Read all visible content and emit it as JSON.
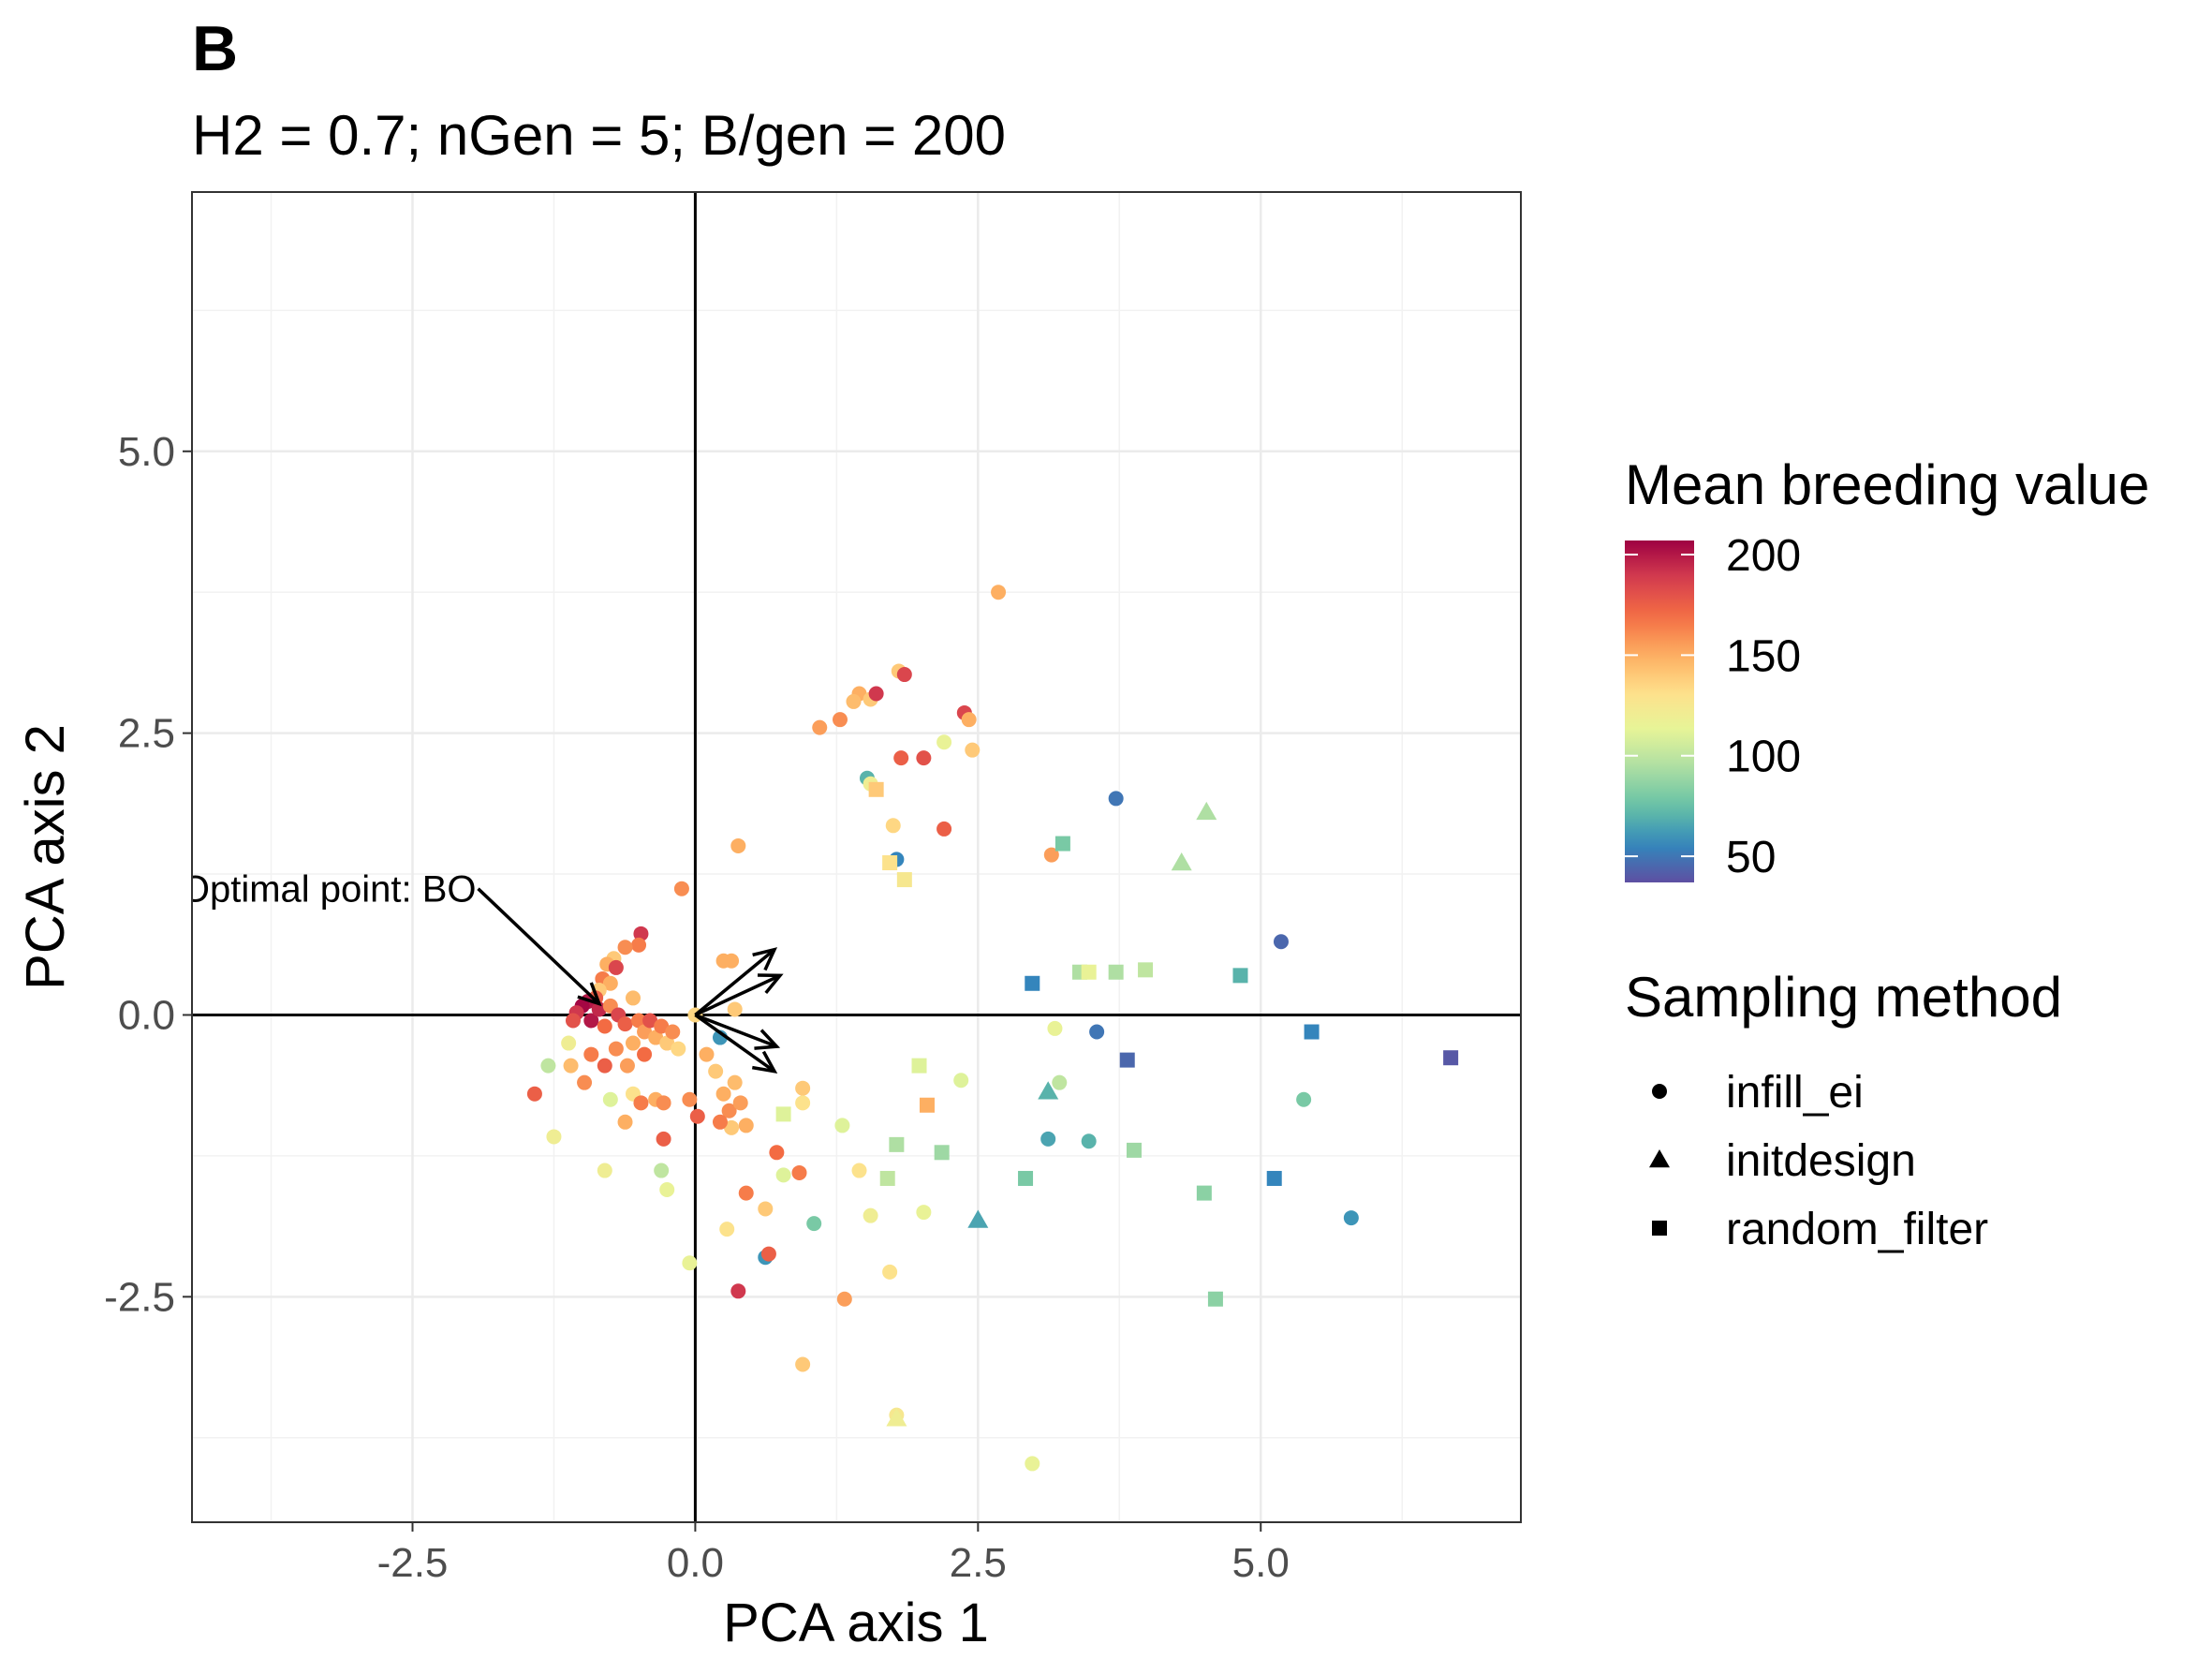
{
  "panel_tag": "B",
  "chart_data": {
    "type": "scatter",
    "title": "",
    "subtitle": "H2 = 0.7; nGen = 5; B/gen = 200",
    "xlabel": "PCA axis 1",
    "ylabel": "PCA axis 2",
    "xlim": [
      -4.45,
      7.3
    ],
    "ylim": [
      -4.5,
      7.3
    ],
    "xticks": [
      -2.5,
      0.0,
      2.5,
      5.0
    ],
    "yticks": [
      -2.5,
      0.0,
      2.5,
      5.0
    ],
    "xtick_labels": [
      "-2.5",
      "0.0",
      "2.5",
      "5.0"
    ],
    "ytick_labels": [
      "-2.5",
      "0.0",
      "2.5",
      "5.0"
    ],
    "grid": true,
    "color_scale": {
      "title": "Mean breeding value",
      "min": 37,
      "max": 207,
      "ticks": [
        200,
        150,
        100,
        50
      ],
      "tick_labels": [
        "200",
        "150",
        "100",
        "50"
      ],
      "palette": [
        "#5e4fa2",
        "#3288bd",
        "#66c2a5",
        "#abdda4",
        "#e6f598",
        "#fee08b",
        "#fdae61",
        "#f46d43",
        "#d53e4f",
        "#9e0142"
      ]
    },
    "shape_legend": {
      "title": "Sampling method",
      "items": [
        {
          "label": "infill_ei",
          "shape": "circle"
        },
        {
          "label": "initdesign",
          "shape": "triangle"
        },
        {
          "label": "random_filter",
          "shape": "square"
        }
      ]
    },
    "annotation": {
      "text": "Optimal point: BO",
      "x": -1.92,
      "y": 1.12,
      "arrow_to": [
        -0.85,
        0.1
      ]
    },
    "loading_arrows": [
      {
        "x": 0.7,
        "y": 0.58
      },
      {
        "x": 0.75,
        "y": 0.35
      },
      {
        "x": 0.7,
        "y": -0.5
      },
      {
        "x": 0.72,
        "y": -0.28
      }
    ],
    "points": [
      {
        "method": "infill_ei",
        "x": 2.68,
        "y": 3.75,
        "value": 150
      },
      {
        "method": "infill_ei",
        "x": 1.8,
        "y": 3.05,
        "value": 140
      },
      {
        "method": "infill_ei",
        "x": 1.85,
        "y": 3.02,
        "value": 185
      },
      {
        "method": "infill_ei",
        "x": 1.45,
        "y": 2.85,
        "value": 150
      },
      {
        "method": "infill_ei",
        "x": 1.55,
        "y": 2.8,
        "value": 140
      },
      {
        "method": "infill_ei",
        "x": 1.6,
        "y": 2.85,
        "value": 190
      },
      {
        "method": "infill_ei",
        "x": 1.4,
        "y": 2.78,
        "value": 145
      },
      {
        "method": "infill_ei",
        "x": 1.28,
        "y": 2.62,
        "value": 160
      },
      {
        "method": "infill_ei",
        "x": 1.1,
        "y": 2.55,
        "value": 155
      },
      {
        "method": "infill_ei",
        "x": 2.38,
        "y": 2.68,
        "value": 185
      },
      {
        "method": "infill_ei",
        "x": 2.42,
        "y": 2.62,
        "value": 150
      },
      {
        "method": "infill_ei",
        "x": 2.45,
        "y": 2.35,
        "value": 140
      },
      {
        "method": "infill_ei",
        "x": 2.2,
        "y": 2.42,
        "value": 115
      },
      {
        "method": "infill_ei",
        "x": 1.82,
        "y": 2.28,
        "value": 175
      },
      {
        "method": "infill_ei",
        "x": 2.02,
        "y": 2.28,
        "value": 180
      },
      {
        "method": "infill_ei",
        "x": 1.52,
        "y": 2.1,
        "value": 70
      },
      {
        "method": "infill_ei",
        "x": 1.55,
        "y": 2.05,
        "value": 120
      },
      {
        "method": "infill_ei",
        "x": 1.75,
        "y": 1.68,
        "value": 135
      },
      {
        "method": "infill_ei",
        "x": 2.2,
        "y": 1.65,
        "value": 175
      },
      {
        "method": "infill_ei",
        "x": 1.78,
        "y": 1.38,
        "value": 55
      },
      {
        "method": "infill_ei",
        "x": 3.15,
        "y": 1.42,
        "value": 155
      },
      {
        "method": "infill_ei",
        "x": 3.72,
        "y": 1.92,
        "value": 50
      },
      {
        "method": "infill_ei",
        "x": 0.38,
        "y": 1.5,
        "value": 150
      },
      {
        "method": "infill_ei",
        "x": -0.12,
        "y": 1.12,
        "value": 160
      },
      {
        "method": "infill_ei",
        "x": -0.48,
        "y": 0.72,
        "value": 190
      },
      {
        "method": "infill_ei",
        "x": -0.5,
        "y": 0.62,
        "value": 165
      },
      {
        "method": "infill_ei",
        "x": -0.62,
        "y": 0.6,
        "value": 160
      },
      {
        "method": "infill_ei",
        "x": -0.72,
        "y": 0.5,
        "value": 140
      },
      {
        "method": "infill_ei",
        "x": -0.78,
        "y": 0.45,
        "value": 150
      },
      {
        "method": "infill_ei",
        "x": -0.7,
        "y": 0.42,
        "value": 185
      },
      {
        "method": "infill_ei",
        "x": -0.82,
        "y": 0.32,
        "value": 165
      },
      {
        "method": "infill_ei",
        "x": -0.75,
        "y": 0.28,
        "value": 150
      },
      {
        "method": "infill_ei",
        "x": -0.85,
        "y": 0.22,
        "value": 140
      },
      {
        "method": "infill_ei",
        "x": -0.88,
        "y": 0.15,
        "value": 175
      },
      {
        "method": "infill_ei",
        "x": -0.95,
        "y": 0.12,
        "value": 200
      },
      {
        "method": "infill_ei",
        "x": -1.0,
        "y": 0.08,
        "value": 205
      },
      {
        "method": "infill_ei",
        "x": -1.05,
        "y": 0.02,
        "value": 190
      },
      {
        "method": "infill_ei",
        "x": -1.08,
        "y": -0.05,
        "value": 180
      },
      {
        "method": "infill_ei",
        "x": -0.92,
        "y": -0.05,
        "value": 200
      },
      {
        "method": "infill_ei",
        "x": -0.85,
        "y": 0.05,
        "value": 195
      },
      {
        "method": "infill_ei",
        "x": -0.8,
        "y": -0.1,
        "value": 170
      },
      {
        "method": "infill_ei",
        "x": -0.75,
        "y": 0.08,
        "value": 160
      },
      {
        "method": "infill_ei",
        "x": -0.68,
        "y": 0.0,
        "value": 185
      },
      {
        "method": "infill_ei",
        "x": -0.62,
        "y": -0.08,
        "value": 175
      },
      {
        "method": "infill_ei",
        "x": -0.55,
        "y": 0.15,
        "value": 145
      },
      {
        "method": "infill_ei",
        "x": -0.5,
        "y": -0.05,
        "value": 165
      },
      {
        "method": "infill_ei",
        "x": -0.45,
        "y": -0.15,
        "value": 155
      },
      {
        "method": "infill_ei",
        "x": -0.4,
        "y": -0.05,
        "value": 180
      },
      {
        "method": "infill_ei",
        "x": -0.35,
        "y": -0.2,
        "value": 150
      },
      {
        "method": "infill_ei",
        "x": -0.3,
        "y": -0.1,
        "value": 165
      },
      {
        "method": "infill_ei",
        "x": -0.25,
        "y": -0.25,
        "value": 140
      },
      {
        "method": "infill_ei",
        "x": -0.2,
        "y": -0.15,
        "value": 160
      },
      {
        "method": "infill_ei",
        "x": -0.15,
        "y": -0.3,
        "value": 135
      },
      {
        "method": "infill_ei",
        "x": -0.45,
        "y": -0.35,
        "value": 170
      },
      {
        "method": "infill_ei",
        "x": -0.55,
        "y": -0.25,
        "value": 150
      },
      {
        "method": "infill_ei",
        "x": -0.6,
        "y": -0.45,
        "value": 155
      },
      {
        "method": "infill_ei",
        "x": -0.7,
        "y": -0.3,
        "value": 160
      },
      {
        "method": "infill_ei",
        "x": -0.8,
        "y": -0.45,
        "value": 175
      },
      {
        "method": "infill_ei",
        "x": -0.92,
        "y": -0.35,
        "value": 165
      },
      {
        "method": "infill_ei",
        "x": -0.98,
        "y": -0.6,
        "value": 160
      },
      {
        "method": "infill_ei",
        "x": -1.1,
        "y": -0.45,
        "value": 145
      },
      {
        "method": "infill_ei",
        "x": -1.12,
        "y": -0.25,
        "value": 120
      },
      {
        "method": "infill_ei",
        "x": -1.3,
        "y": -0.45,
        "value": 100
      },
      {
        "method": "infill_ei",
        "x": -1.42,
        "y": -0.7,
        "value": 175
      },
      {
        "method": "infill_ei",
        "x": -1.25,
        "y": -1.08,
        "value": 120
      },
      {
        "method": "infill_ei",
        "x": -0.75,
        "y": -0.75,
        "value": 110
      },
      {
        "method": "infill_ei",
        "x": -0.62,
        "y": -0.95,
        "value": 150
      },
      {
        "method": "infill_ei",
        "x": -0.55,
        "y": -0.7,
        "value": 130
      },
      {
        "method": "infill_ei",
        "x": -0.48,
        "y": -0.78,
        "value": 165
      },
      {
        "method": "infill_ei",
        "x": -0.35,
        "y": -0.75,
        "value": 150
      },
      {
        "method": "infill_ei",
        "x": -0.28,
        "y": -0.78,
        "value": 160
      },
      {
        "method": "infill_ei",
        "x": -0.28,
        "y": -1.1,
        "value": 175
      },
      {
        "method": "infill_ei",
        "x": -0.8,
        "y": -1.38,
        "value": 120
      },
      {
        "method": "infill_ei",
        "x": -0.3,
        "y": -1.38,
        "value": 100
      },
      {
        "method": "infill_ei",
        "x": -0.25,
        "y": -1.55,
        "value": 115
      },
      {
        "method": "infill_ei",
        "x": -0.05,
        "y": -0.75,
        "value": 160
      },
      {
        "method": "infill_ei",
        "x": 0.02,
        "y": -0.9,
        "value": 175
      },
      {
        "method": "infill_ei",
        "x": 0.18,
        "y": -0.5,
        "value": 140
      },
      {
        "method": "infill_ei",
        "x": 0.25,
        "y": -0.7,
        "value": 150
      },
      {
        "method": "infill_ei",
        "x": 0.3,
        "y": -0.85,
        "value": 160
      },
      {
        "method": "infill_ei",
        "x": 0.35,
        "y": -0.6,
        "value": 145
      },
      {
        "method": "infill_ei",
        "x": 0.4,
        "y": -0.78,
        "value": 155
      },
      {
        "method": "infill_ei",
        "x": 0.45,
        "y": -0.98,
        "value": 150
      },
      {
        "method": "infill_ei",
        "x": 0.32,
        "y": -1.0,
        "value": 140
      },
      {
        "method": "infill_ei",
        "x": 0.22,
        "y": -0.95,
        "value": 165
      },
      {
        "method": "infill_ei",
        "x": 0.22,
        "y": -0.2,
        "value": 60
      },
      {
        "method": "infill_ei",
        "x": 0.0,
        "y": 0.0,
        "value": 135
      },
      {
        "method": "infill_ei",
        "x": 0.1,
        "y": -0.35,
        "value": 150
      },
      {
        "method": "infill_ei",
        "x": 0.35,
        "y": 0.05,
        "value": 140
      },
      {
        "method": "infill_ei",
        "x": 0.25,
        "y": 0.48,
        "value": 150
      },
      {
        "method": "infill_ei",
        "x": 0.32,
        "y": 0.48,
        "value": 150
      },
      {
        "method": "infill_ei",
        "x": 0.95,
        "y": -0.65,
        "value": 140
      },
      {
        "method": "infill_ei",
        "x": 0.95,
        "y": -0.78,
        "value": 130
      },
      {
        "method": "infill_ei",
        "x": 0.72,
        "y": -1.22,
        "value": 170
      },
      {
        "method": "infill_ei",
        "x": 0.78,
        "y": -1.42,
        "value": 110
      },
      {
        "method": "infill_ei",
        "x": 0.92,
        "y": -1.4,
        "value": 165
      },
      {
        "method": "infill_ei",
        "x": 0.45,
        "y": -1.58,
        "value": 165
      },
      {
        "method": "infill_ei",
        "x": 0.62,
        "y": -1.72,
        "value": 140
      },
      {
        "method": "infill_ei",
        "x": 0.28,
        "y": -1.9,
        "value": 130
      },
      {
        "method": "infill_ei",
        "x": 0.62,
        "y": -2.15,
        "value": 60
      },
      {
        "method": "infill_ei",
        "x": 0.65,
        "y": -2.12,
        "value": 175
      },
      {
        "method": "infill_ei",
        "x": 0.38,
        "y": -2.45,
        "value": 190
      },
      {
        "method": "infill_ei",
        "x": -0.05,
        "y": -2.2,
        "value": 115
      },
      {
        "method": "infill_ei",
        "x": 1.32,
        "y": -2.52,
        "value": 155
      },
      {
        "method": "infill_ei",
        "x": 0.95,
        "y": -3.1,
        "value": 140
      },
      {
        "method": "infill_ei",
        "x": 1.05,
        "y": -1.85,
        "value": 80
      },
      {
        "method": "infill_ei",
        "x": 1.3,
        "y": -0.98,
        "value": 110
      },
      {
        "method": "infill_ei",
        "x": 1.45,
        "y": -1.38,
        "value": 130
      },
      {
        "method": "infill_ei",
        "x": 1.55,
        "y": -1.78,
        "value": 120
      },
      {
        "method": "infill_ei",
        "x": 1.72,
        "y": -2.28,
        "value": 130
      },
      {
        "method": "infill_ei",
        "x": 1.78,
        "y": -3.55,
        "value": 125
      },
      {
        "method": "infill_ei",
        "x": 2.02,
        "y": -1.75,
        "value": 115
      },
      {
        "method": "infill_ei",
        "x": 2.35,
        "y": -0.58,
        "value": 110
      },
      {
        "method": "infill_ei",
        "x": 2.98,
        "y": -3.98,
        "value": 115
      },
      {
        "method": "infill_ei",
        "x": 3.18,
        "y": -0.12,
        "value": 115
      },
      {
        "method": "infill_ei",
        "x": 3.22,
        "y": -0.6,
        "value": 100
      },
      {
        "method": "infill_ei",
        "x": 3.12,
        "y": -1.1,
        "value": 65
      },
      {
        "method": "infill_ei",
        "x": 3.48,
        "y": -1.12,
        "value": 70
      },
      {
        "method": "infill_ei",
        "x": 3.55,
        "y": -0.15,
        "value": 50
      },
      {
        "method": "infill_ei",
        "x": 5.18,
        "y": 0.65,
        "value": 45
      },
      {
        "method": "infill_ei",
        "x": 5.38,
        "y": -0.75,
        "value": 80
      },
      {
        "method": "infill_ei",
        "x": 5.8,
        "y": -1.8,
        "value": 60
      },
      {
        "method": "initdesign",
        "x": 4.52,
        "y": 1.8,
        "value": 95
      },
      {
        "method": "initdesign",
        "x": 4.3,
        "y": 1.35,
        "value": 95
      },
      {
        "method": "initdesign",
        "x": 3.12,
        "y": -0.68,
        "value": 70
      },
      {
        "method": "initdesign",
        "x": 2.5,
        "y": -1.82,
        "value": 65
      },
      {
        "method": "initdesign",
        "x": 1.78,
        "y": -3.58,
        "value": 120
      },
      {
        "method": "random_filter",
        "x": 1.6,
        "y": 2.0,
        "value": 140
      },
      {
        "method": "random_filter",
        "x": 1.72,
        "y": 1.35,
        "value": 130
      },
      {
        "method": "random_filter",
        "x": 1.85,
        "y": 1.2,
        "value": 125
      },
      {
        "method": "random_filter",
        "x": 3.25,
        "y": 1.52,
        "value": 80
      },
      {
        "method": "random_filter",
        "x": 2.98,
        "y": 0.28,
        "value": 55
      },
      {
        "method": "random_filter",
        "x": 3.4,
        "y": 0.38,
        "value": 95
      },
      {
        "method": "random_filter",
        "x": 3.48,
        "y": 0.38,
        "value": 115
      },
      {
        "method": "random_filter",
        "x": 3.72,
        "y": 0.38,
        "value": 95
      },
      {
        "method": "random_filter",
        "x": 3.98,
        "y": 0.4,
        "value": 100
      },
      {
        "method": "random_filter",
        "x": 4.82,
        "y": 0.35,
        "value": 70
      },
      {
        "method": "random_filter",
        "x": 5.45,
        "y": -0.15,
        "value": 55
      },
      {
        "method": "random_filter",
        "x": 6.68,
        "y": -0.38,
        "value": 40
      },
      {
        "method": "random_filter",
        "x": 3.82,
        "y": -0.4,
        "value": 45
      },
      {
        "method": "random_filter",
        "x": 3.88,
        "y": -1.2,
        "value": 90
      },
      {
        "method": "random_filter",
        "x": 4.5,
        "y": -1.58,
        "value": 85
      },
      {
        "method": "random_filter",
        "x": 4.6,
        "y": -2.52,
        "value": 85
      },
      {
        "method": "random_filter",
        "x": 5.12,
        "y": -1.45,
        "value": 55
      },
      {
        "method": "random_filter",
        "x": 2.92,
        "y": -1.45,
        "value": 80
      },
      {
        "method": "random_filter",
        "x": 1.98,
        "y": -0.45,
        "value": 110
      },
      {
        "method": "random_filter",
        "x": 2.05,
        "y": -0.8,
        "value": 150
      },
      {
        "method": "random_filter",
        "x": 1.78,
        "y": -1.15,
        "value": 95
      },
      {
        "method": "random_filter",
        "x": 2.18,
        "y": -1.22,
        "value": 90
      },
      {
        "method": "random_filter",
        "x": 1.7,
        "y": -1.45,
        "value": 100
      },
      {
        "method": "random_filter",
        "x": 0.78,
        "y": -0.88,
        "value": 110
      }
    ]
  }
}
